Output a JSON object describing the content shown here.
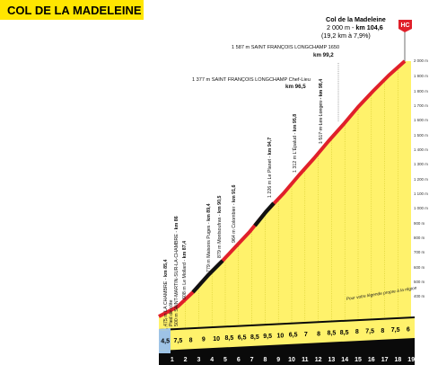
{
  "title": "COL DE LA MADELEINE",
  "summit": {
    "name": "Col de la Madeleine",
    "line2_prefix": "2 000 m - ",
    "line2_km": "km 104,6",
    "line3": "(19,2 km à 7,9%)",
    "badge": "HC"
  },
  "points": [
    {
      "pre": "475 m LA CHAMBRE - ",
      "km": "km 85,4",
      "sub": "Pied de côte"
    },
    {
      "pre": "500 m SAINT-MARTIN-SUR-LA-CHAMBRE - ",
      "km": "km 86"
    },
    {
      "pre": "608 m Le Mollard - ",
      "km": "km 87,4"
    },
    {
      "pre": "779 m Maisons Puges - ",
      "km": "km 89,4"
    },
    {
      "pre": "879 m Montsoufras - ",
      "km": "km 90,5"
    },
    {
      "pre": "964 m Colombier - ",
      "km": "km 91,6"
    },
    {
      "pre": "1 226 m Le Planet - ",
      "km": "km 94,7"
    },
    {
      "pre": "1 312 m L'Épalud - ",
      "km": "km 95,8"
    },
    {
      "pre": "1 517 m Les Longes - ",
      "km": "km 98,4"
    }
  ],
  "labels_horizontal": [
    {
      "text": "1 377 m SAINT FRANÇOIS LONGCHAMP Chef-Lieu",
      "km": "km 96,5"
    },
    {
      "text": "1 587 m SAINT FRANÇOIS LONGCHAMP 1650",
      "km": "km 99,2"
    }
  ],
  "altitude_scale": [
    "2 000 m",
    "1 900 m",
    "1 800 m",
    "1 700 m",
    "1 600 m",
    "1 500 m",
    "1 400 m",
    "1 300 m",
    "1 200 m",
    "1 100 m",
    "1 000 m",
    "900 m",
    "800 m",
    "700 m",
    "600 m",
    "500 m",
    "400 m"
  ],
  "gradients": [
    "4,5",
    "7,5",
    "8",
    "9",
    "10",
    "8,5",
    "6,5",
    "8,5",
    "9,5",
    "10",
    "6,5",
    "7",
    "8",
    "8,5",
    "8,5",
    "8",
    "7,5",
    "8",
    "7,5",
    "6"
  ],
  "km_numbers": [
    "1",
    "2",
    "3",
    "4",
    "5",
    "6",
    "7",
    "8",
    "9",
    "10",
    "11",
    "12",
    "13",
    "14",
    "15",
    "16",
    "17",
    "18",
    "19"
  ],
  "road_note": "Pour votre légende propre à la région",
  "colors": {
    "fill": "#fff26b",
    "road_red": "#e0202a",
    "road_black": "#111111",
    "base": "#0a0a0a",
    "first_segment": "#9ec3e6",
    "badge": "#e0202a",
    "title_bg": "#ffe600",
    "grid": "#b8b000"
  }
}
